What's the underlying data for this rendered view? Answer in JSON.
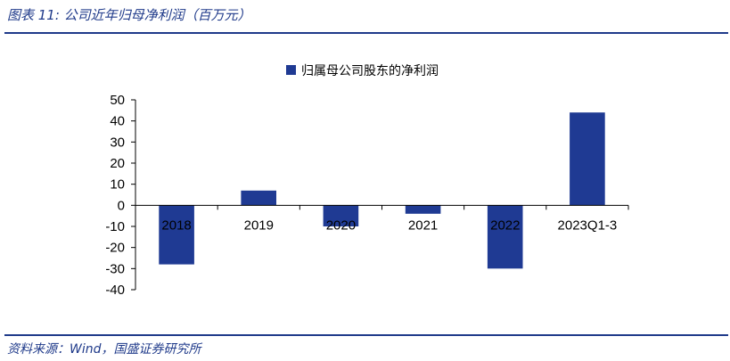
{
  "header": {
    "figure_title": "图表 11:  公司近年归母净利润（百万元）"
  },
  "footer": {
    "source": "资料来源：Wind，国盛证券研究所"
  },
  "colors": {
    "bar": "#1f3a93",
    "rule": "#1f3a8a",
    "axis": "#000000"
  },
  "chart_data": {
    "type": "bar",
    "title": "",
    "xlabel": "",
    "ylabel": "",
    "categories": [
      "2018",
      "2019",
      "2020",
      "2021",
      "2022",
      "2023Q1-3"
    ],
    "series": [
      {
        "name": "归属母公司股东的净利润",
        "values": [
          -28,
          7,
          -10,
          -4,
          -30,
          44
        ]
      }
    ],
    "ylim": [
      -40,
      50
    ],
    "yticks": [
      50,
      40,
      30,
      20,
      10,
      0,
      -10,
      -20,
      -30,
      -40
    ],
    "ytick_labels": [
      "50",
      "40",
      "30",
      "20",
      "10",
      "0",
      "-10",
      "-20",
      "-30",
      "-40"
    ],
    "grid": false,
    "legend": "top-center"
  }
}
